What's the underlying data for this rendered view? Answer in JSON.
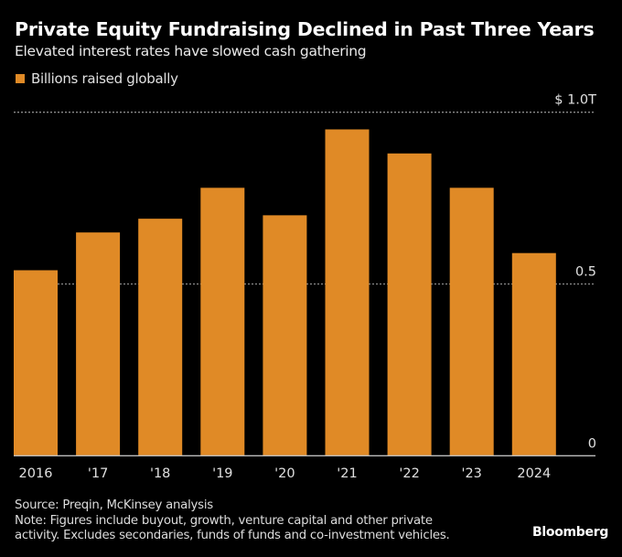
{
  "colors": {
    "background": "#000000",
    "bar": "#E08A26",
    "gridline": "#8a8a8a",
    "axis": "#bdbdbd"
  },
  "chart_data": {
    "type": "bar",
    "title": "Private Equity Fundraising Declined in Past Three Years",
    "subtitle": "Elevated interest rates have slowed cash gathering",
    "legend": [
      {
        "name": "Billions raised globally",
        "color": "#E08A26"
      }
    ],
    "legend_position": "top-left",
    "categories": [
      "2016",
      "'17",
      "'18",
      "'19",
      "'20",
      "'21",
      "'22",
      "'23",
      "2024"
    ],
    "series": [
      {
        "name": "Billions raised globally",
        "unit": "trillion USD",
        "values": [
          0.54,
          0.65,
          0.69,
          0.78,
          0.7,
          0.95,
          0.88,
          0.78,
          0.59
        ]
      }
    ],
    "xlabel": "",
    "ylabel": "",
    "ylim": [
      0,
      1.0
    ],
    "y_axis_side": "right",
    "y_ticks": [
      {
        "value": 1.0,
        "label": "$ 1.0T"
      },
      {
        "value": 0.5,
        "label": "0.5"
      },
      {
        "value": 0,
        "label": "0"
      }
    ],
    "grid": true
  },
  "footer": {
    "source": "Source: Preqin, McKinsey analysis",
    "note_line1": "Note: Figures include buyout, growth, venture capital and other private",
    "note_line2": "activity. Excludes secondaries, funds of funds and co-investment vehicles.",
    "brand": "Bloomberg"
  }
}
